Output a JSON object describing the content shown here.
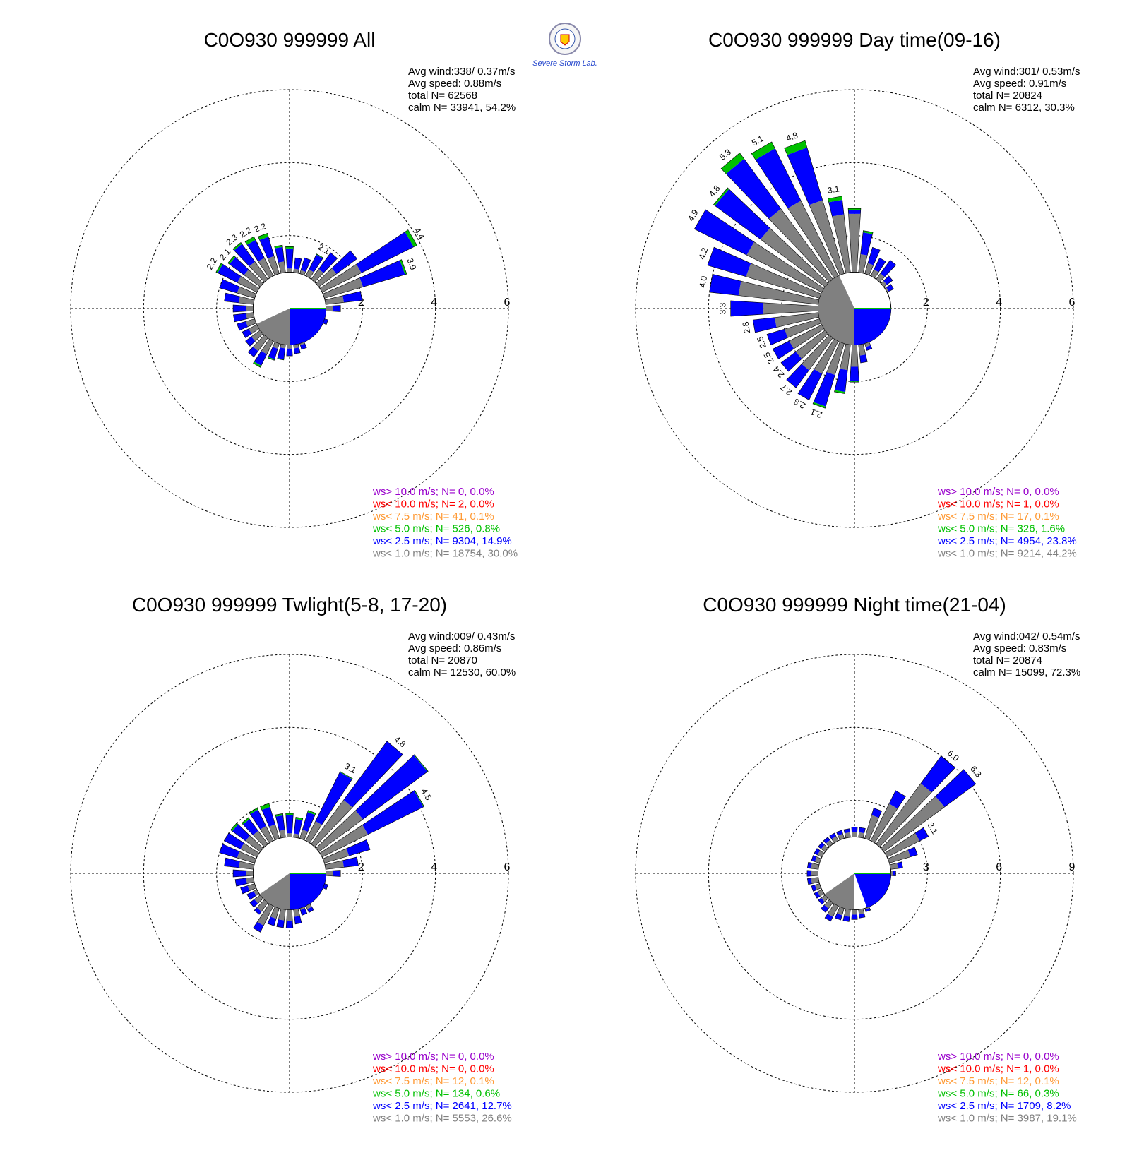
{
  "colors": {
    "gray": "#808080",
    "blue": "#0000ff",
    "green": "#00c000",
    "orange": "#ff9933",
    "red": "#ff0000",
    "purple": "#9900cc",
    "grid": "#000000"
  },
  "logo": {
    "text": "Severe Storm Lab."
  },
  "chart_data": [
    {
      "type": "windrose",
      "title": "C0O930 999999 All",
      "stats": [
        "Avg wind:338/ 0.37m/s",
        "Avg speed: 0.88m/s",
        "total N=       62568",
        "calm N=  33941,  54.2%"
      ],
      "r_ticks": [
        "2",
        "4",
        "6"
      ],
      "r_max": 6,
      "calm_radius": 1.0,
      "calm_pie": {
        "gray_from_deg": 180,
        "gray_to_deg": 245,
        "blue_from_deg": 90,
        "blue_to_deg": 180
      },
      "petals": [
        {
          "dir": 0,
          "gray": 1.1,
          "blue": 0.55,
          "green": 0.05
        },
        {
          "dir": 10,
          "gray": 1.1,
          "blue": 0.3,
          "green": 0
        },
        {
          "dir": 20,
          "gray": 1.1,
          "blue": 0.35,
          "green": 0
        },
        {
          "dir": 30,
          "gray": 1.2,
          "blue": 0.45,
          "green": 0.02,
          "label": "2.1"
        },
        {
          "dir": 40,
          "gray": 1.35,
          "blue": 0.55,
          "green": 0
        },
        {
          "dir": 50,
          "gray": 1.6,
          "blue": 0.7,
          "green": 0
        },
        {
          "dir": 60,
          "gray": 2.2,
          "blue": 1.6,
          "green": 0.1,
          "label": "4.4"
        },
        {
          "dir": 70,
          "gray": 2.1,
          "blue": 1.2,
          "green": 0.05,
          "label": "3.9"
        },
        {
          "dir": 80,
          "gray": 1.5,
          "blue": 0.5,
          "green": 0
        },
        {
          "dir": 90,
          "gray": 1.2,
          "blue": 0.2,
          "green": 0
        },
        {
          "dir": 110,
          "gray": 1.0,
          "blue": 0.1,
          "green": 0
        },
        {
          "dir": 160,
          "gray": 1.05,
          "blue": 0.12,
          "green": 0
        },
        {
          "dir": 170,
          "gray": 1.1,
          "blue": 0.15,
          "green": 0
        },
        {
          "dir": 180,
          "gray": 1.1,
          "blue": 0.2,
          "green": 0
        },
        {
          "dir": 190,
          "gray": 1.1,
          "blue": 0.3,
          "green": 0.02
        },
        {
          "dir": 200,
          "gray": 1.15,
          "blue": 0.3,
          "green": 0.03
        },
        {
          "dir": 210,
          "gray": 1.4,
          "blue": 0.35,
          "green": 0.05
        },
        {
          "dir": 220,
          "gray": 1.45,
          "blue": 0.2,
          "green": 0
        },
        {
          "dir": 230,
          "gray": 1.3,
          "blue": 0.2,
          "green": 0
        },
        {
          "dir": 240,
          "gray": 1.25,
          "blue": 0.2,
          "green": 0
        },
        {
          "dir": 250,
          "gray": 1.25,
          "blue": 0.25,
          "green": 0
        },
        {
          "dir": 260,
          "gray": 1.2,
          "blue": 0.35,
          "green": 0
        },
        {
          "dir": 270,
          "gray": 1.2,
          "blue": 0.35,
          "green": 0
        },
        {
          "dir": 280,
          "gray": 1.4,
          "blue": 0.4,
          "green": 0
        },
        {
          "dir": 290,
          "gray": 1.5,
          "blue": 0.5,
          "green": 0
        },
        {
          "dir": 300,
          "gray": 1.6,
          "blue": 0.6,
          "green": 0.05,
          "label": "2.2"
        },
        {
          "dir": 310,
          "gray": 1.55,
          "blue": 0.5,
          "green": 0.05,
          "label": "2.1"
        },
        {
          "dir": 320,
          "gray": 1.6,
          "blue": 0.6,
          "green": 0.05,
          "label": "2.3"
        },
        {
          "dir": 330,
          "gray": 1.55,
          "blue": 0.55,
          "green": 0.1,
          "label": "2.2"
        },
        {
          "dir": 340,
          "gray": 1.5,
          "blue": 0.55,
          "green": 0.1,
          "label": "2.2"
        },
        {
          "dir": 350,
          "gray": 1.3,
          "blue": 0.4,
          "green": 0.05
        }
      ],
      "legend": [
        {
          "text": "ws> 10.0 m/s; N=     0,  0.0%",
          "color": "purple"
        },
        {
          "text": "ws< 10.0 m/s; N=     2,  0.0%",
          "color": "red"
        },
        {
          "text": "ws<  7.5 m/s; N=    41,  0.1%",
          "color": "orange"
        },
        {
          "text": "ws<  5.0 m/s; N=   526,  0.8%",
          "color": "green"
        },
        {
          "text": "ws<  2.5 m/s; N=  9304, 14.9%",
          "color": "blue"
        },
        {
          "text": "ws<  1.0 m/s; N= 18754, 30.0%",
          "color": "gray"
        }
      ]
    },
    {
      "type": "windrose",
      "title": "C0O930 999999 Day time(09-16)",
      "stats": [
        "Avg wind:301/ 0.53m/s",
        "Avg speed: 0.91m/s",
        "total N=       20824",
        "calm N=   6312,  30.3%"
      ],
      "r_ticks": [
        "2",
        "4",
        "6"
      ],
      "r_max": 6,
      "calm_radius": 1.0,
      "calm_pie": {
        "gray_from_deg": 180,
        "gray_to_deg": 335,
        "blue_from_deg": 90,
        "blue_to_deg": 180
      },
      "petals": [
        {
          "dir": 0,
          "gray": 2.6,
          "blue": 0.1,
          "green": 0.05
        },
        {
          "dir": 10,
          "gray": 1.5,
          "blue": 0.6,
          "green": 0.05
        },
        {
          "dir": 20,
          "gray": 1.3,
          "blue": 0.45,
          "green": 0
        },
        {
          "dir": 30,
          "gray": 1.2,
          "blue": 0.35,
          "green": 0
        },
        {
          "dir": 40,
          "gray": 1.2,
          "blue": 0.45,
          "green": 0
        },
        {
          "dir": 50,
          "gray": 1.1,
          "blue": 0.2,
          "green": 0
        },
        {
          "dir": 60,
          "gray": 1.05,
          "blue": 0.15,
          "green": 0
        },
        {
          "dir": 160,
          "gray": 1.1,
          "blue": 0.1,
          "green": 0
        },
        {
          "dir": 170,
          "gray": 1.3,
          "blue": 0.2,
          "green": 0
        },
        {
          "dir": 180,
          "gray": 1.6,
          "blue": 0.4,
          "green": 0.02
        },
        {
          "dir": 190,
          "gray": 1.7,
          "blue": 0.6,
          "green": 0.05
        },
        {
          "dir": 200,
          "gray": 1.9,
          "blue": 0.9,
          "green": 0.05,
          "label": "2.1"
        },
        {
          "dir": 210,
          "gray": 2.0,
          "blue": 0.8,
          "green": 0,
          "label": "2.8"
        },
        {
          "dir": 220,
          "gray": 2.1,
          "blue": 0.6,
          "green": 0,
          "label": "2.7"
        },
        {
          "dir": 230,
          "gray": 2.0,
          "blue": 0.5,
          "green": 0,
          "label": "2.4"
        },
        {
          "dir": 240,
          "gray": 2.0,
          "blue": 0.5,
          "green": 0,
          "label": "2.5"
        },
        {
          "dir": 250,
          "gray": 2.0,
          "blue": 0.5,
          "green": 0,
          "label": "2.5"
        },
        {
          "dir": 260,
          "gray": 2.2,
          "blue": 0.6,
          "green": 0,
          "label": "2.8"
        },
        {
          "dir": 270,
          "gray": 2.5,
          "blue": 0.9,
          "green": 0,
          "label": "3.3"
        },
        {
          "dir": 280,
          "gray": 3.2,
          "blue": 0.8,
          "green": 0,
          "label": "4.0"
        },
        {
          "dir": 290,
          "gray": 3.1,
          "blue": 1.1,
          "green": 0,
          "label": "4.2"
        },
        {
          "dir": 300,
          "gray": 3.3,
          "blue": 1.6,
          "green": 0,
          "label": "4.9"
        },
        {
          "dir": 310,
          "gray": 3.2,
          "blue": 1.55,
          "green": 0.05,
          "label": "4.8"
        },
        {
          "dir": 320,
          "gray": 3.4,
          "blue": 1.7,
          "green": 0.2,
          "label": "5.3"
        },
        {
          "dir": 330,
          "gray": 3.3,
          "blue": 1.6,
          "green": 0.2,
          "label": "5.1"
        },
        {
          "dir": 340,
          "gray": 3.1,
          "blue": 1.5,
          "green": 0.2,
          "label": "4.8"
        },
        {
          "dir": 350,
          "gray": 2.6,
          "blue": 0.4,
          "green": 0.1,
          "label": "3.1"
        }
      ],
      "legend": [
        {
          "text": "ws> 10.0 m/s; N=     0,  0.0%",
          "color": "purple"
        },
        {
          "text": "ws< 10.0 m/s; N=     1,  0.0%",
          "color": "red"
        },
        {
          "text": "ws<  7.5 m/s; N=    17,  0.1%",
          "color": "orange"
        },
        {
          "text": "ws<  5.0 m/s; N=   326,  1.6%",
          "color": "green"
        },
        {
          "text": "ws<  2.5 m/s; N=  4954, 23.8%",
          "color": "blue"
        },
        {
          "text": "ws<  1.0 m/s; N=  9214, 44.2%",
          "color": "gray"
        }
      ]
    },
    {
      "type": "windrose",
      "title": "C0O930 999999 Twlight(5-8, 17-20)",
      "stats": [
        "Avg wind:009/ 0.43m/s",
        "Avg speed: 0.86m/s",
        "total N=       20870",
        "calm N=  12530,  60.0%"
      ],
      "r_ticks": [
        "2",
        "4",
        "6"
      ],
      "r_max": 6,
      "calm_radius": 1.0,
      "calm_pie": {
        "gray_from_deg": 180,
        "gray_to_deg": 235,
        "blue_from_deg": 90,
        "blue_to_deg": 180
      },
      "petals": [
        {
          "dir": 0,
          "gray": 1.1,
          "blue": 0.5,
          "green": 0.05
        },
        {
          "dir": 10,
          "gray": 1.1,
          "blue": 0.4,
          "green": 0.05
        },
        {
          "dir": 20,
          "gray": 1.25,
          "blue": 0.5,
          "green": 0.05
        },
        {
          "dir": 30,
          "gray": 1.6,
          "blue": 1.5,
          "green": 0.02,
          "label": "3.1"
        },
        {
          "dir": 40,
          "gray": 2.5,
          "blue": 2.0,
          "green": 0,
          "label": "4.8"
        },
        {
          "dir": 50,
          "gray": 2.5,
          "blue": 2.2,
          "green": 0.02
        },
        {
          "dir": 60,
          "gray": 2.4,
          "blue": 1.7,
          "green": 0.02,
          "label": "4.5"
        },
        {
          "dir": 70,
          "gray": 1.7,
          "blue": 0.6,
          "green": 0
        },
        {
          "dir": 80,
          "gray": 1.5,
          "blue": 0.4,
          "green": 0
        },
        {
          "dir": 90,
          "gray": 1.2,
          "blue": 0.2,
          "green": 0
        },
        {
          "dir": 110,
          "gray": 1.0,
          "blue": 0.1,
          "green": 0
        },
        {
          "dir": 150,
          "gray": 1.1,
          "blue": 0.1,
          "green": 0
        },
        {
          "dir": 160,
          "gray": 1.05,
          "blue": 0.15,
          "green": 0
        },
        {
          "dir": 170,
          "gray": 1.2,
          "blue": 0.2,
          "green": 0
        },
        {
          "dir": 180,
          "gray": 1.3,
          "blue": 0.2,
          "green": 0
        },
        {
          "dir": 190,
          "gray": 1.3,
          "blue": 0.2,
          "green": 0
        },
        {
          "dir": 200,
          "gray": 1.3,
          "blue": 0.2,
          "green": 0
        },
        {
          "dir": 210,
          "gray": 1.6,
          "blue": 0.2,
          "green": 0
        },
        {
          "dir": 220,
          "gray": 1.3,
          "blue": 0.1,
          "green": 0
        },
        {
          "dir": 230,
          "gray": 1.2,
          "blue": 0.15,
          "green": 0
        },
        {
          "dir": 240,
          "gray": 1.1,
          "blue": 0.2,
          "green": 0
        },
        {
          "dir": 250,
          "gray": 1.2,
          "blue": 0.2,
          "green": 0
        },
        {
          "dir": 260,
          "gray": 1.2,
          "blue": 0.3,
          "green": 0
        },
        {
          "dir": 270,
          "gray": 1.2,
          "blue": 0.35,
          "green": 0
        },
        {
          "dir": 280,
          "gray": 1.4,
          "blue": 0.4,
          "green": 0
        },
        {
          "dir": 290,
          "gray": 1.5,
          "blue": 0.5,
          "green": 0
        },
        {
          "dir": 300,
          "gray": 1.5,
          "blue": 0.5,
          "green": 0
        },
        {
          "dir": 310,
          "gray": 1.5,
          "blue": 0.45,
          "green": 0.05
        },
        {
          "dir": 320,
          "gray": 1.45,
          "blue": 0.4,
          "green": 0.05
        },
        {
          "dir": 330,
          "gray": 1.45,
          "blue": 0.5,
          "green": 0.05
        },
        {
          "dir": 340,
          "gray": 1.4,
          "blue": 0.5,
          "green": 0.1
        },
        {
          "dir": 350,
          "gray": 1.2,
          "blue": 0.4,
          "green": 0.05
        }
      ],
      "legend": [
        {
          "text": "ws> 10.0 m/s; N=     0,  0.0%",
          "color": "purple"
        },
        {
          "text": "ws< 10.0 m/s; N=     0,  0.0%",
          "color": "red"
        },
        {
          "text": "ws<  7.5 m/s; N=    12,  0.1%",
          "color": "orange"
        },
        {
          "text": "ws<  5.0 m/s; N=   134,  0.6%",
          "color": "green"
        },
        {
          "text": "ws<  2.5 m/s; N=  2641, 12.7%",
          "color": "blue"
        },
        {
          "text": "ws<  1.0 m/s; N=  5553, 26.6%",
          "color": "gray"
        }
      ]
    },
    {
      "type": "windrose",
      "title": "C0O930 999999 Night time(21-04)",
      "stats": [
        "Avg wind:042/ 0.54m/s",
        "Avg speed: 0.83m/s",
        "total N=       20874",
        "calm N=  15099,  72.3%"
      ],
      "r_ticks": [
        "3",
        "6",
        "9"
      ],
      "r_max": 9,
      "calm_radius": 1.5,
      "calm_pie": {
        "gray_from_deg": 180,
        "gray_to_deg": 235,
        "blue_from_deg": 90,
        "blue_to_deg": 160
      },
      "petals": [
        {
          "dir": 0,
          "gray": 1.7,
          "blue": 0.2,
          "green": 0
        },
        {
          "dir": 10,
          "gray": 1.7,
          "blue": 0.2,
          "green": 0
        },
        {
          "dir": 20,
          "gray": 2.5,
          "blue": 0.3,
          "green": 0
        },
        {
          "dir": 30,
          "gray": 3.2,
          "blue": 0.6,
          "green": 0
        },
        {
          "dir": 40,
          "gray": 4.6,
          "blue": 1.4,
          "green": 0,
          "label": "6.0"
        },
        {
          "dir": 50,
          "gray": 4.6,
          "blue": 1.6,
          "green": 0,
          "label": "6.3"
        },
        {
          "dir": 60,
          "gray": 3.0,
          "blue": 0.4,
          "green": 0,
          "label": "3.1"
        },
        {
          "dir": 70,
          "gray": 2.4,
          "blue": 0.3,
          "green": 0
        },
        {
          "dir": 80,
          "gray": 1.8,
          "blue": 0.2,
          "green": 0
        },
        {
          "dir": 90,
          "gray": 1.6,
          "blue": 0.1,
          "green": 0
        },
        {
          "dir": 160,
          "gray": 1.55,
          "blue": 0.1,
          "green": 0
        },
        {
          "dir": 170,
          "gray": 1.7,
          "blue": 0.15,
          "green": 0
        },
        {
          "dir": 180,
          "gray": 1.7,
          "blue": 0.2,
          "green": 0
        },
        {
          "dir": 190,
          "gray": 1.8,
          "blue": 0.2,
          "green": 0
        },
        {
          "dir": 200,
          "gray": 1.8,
          "blue": 0.2,
          "green": 0
        },
        {
          "dir": 210,
          "gray": 2.0,
          "blue": 0.2,
          "green": 0
        },
        {
          "dir": 220,
          "gray": 1.8,
          "blue": 0.2,
          "green": 0
        },
        {
          "dir": 230,
          "gray": 1.7,
          "blue": 0.15,
          "green": 0
        },
        {
          "dir": 240,
          "gray": 1.7,
          "blue": 0.15,
          "green": 0
        },
        {
          "dir": 250,
          "gray": 1.7,
          "blue": 0.15,
          "green": 0
        },
        {
          "dir": 260,
          "gray": 1.8,
          "blue": 0.15,
          "green": 0
        },
        {
          "dir": 270,
          "gray": 1.8,
          "blue": 0.15,
          "green": 0
        },
        {
          "dir": 280,
          "gray": 1.8,
          "blue": 0.15,
          "green": 0
        },
        {
          "dir": 290,
          "gray": 1.7,
          "blue": 0.15,
          "green": 0
        },
        {
          "dir": 300,
          "gray": 1.7,
          "blue": 0.15,
          "green": 0
        },
        {
          "dir": 310,
          "gray": 1.7,
          "blue": 0.15,
          "green": 0
        },
        {
          "dir": 320,
          "gray": 1.7,
          "blue": 0.15,
          "green": 0
        },
        {
          "dir": 330,
          "gray": 1.7,
          "blue": 0.15,
          "green": 0
        },
        {
          "dir": 340,
          "gray": 1.7,
          "blue": 0.15,
          "green": 0
        },
        {
          "dir": 350,
          "gray": 1.7,
          "blue": 0.15,
          "green": 0
        }
      ],
      "legend": [
        {
          "text": "ws> 10.0 m/s; N=     0,  0.0%",
          "color": "purple"
        },
        {
          "text": "ws< 10.0 m/s; N=     1,  0.0%",
          "color": "red"
        },
        {
          "text": "ws<  7.5 m/s; N=    12,  0.1%",
          "color": "orange"
        },
        {
          "text": "ws<  5.0 m/s; N=    66,  0.3%",
          "color": "green"
        },
        {
          "text": "ws<  2.5 m/s; N=  1709,  8.2%",
          "color": "blue"
        },
        {
          "text": "ws<  1.0 m/s; N=  3987, 19.1%",
          "color": "gray"
        }
      ]
    }
  ]
}
